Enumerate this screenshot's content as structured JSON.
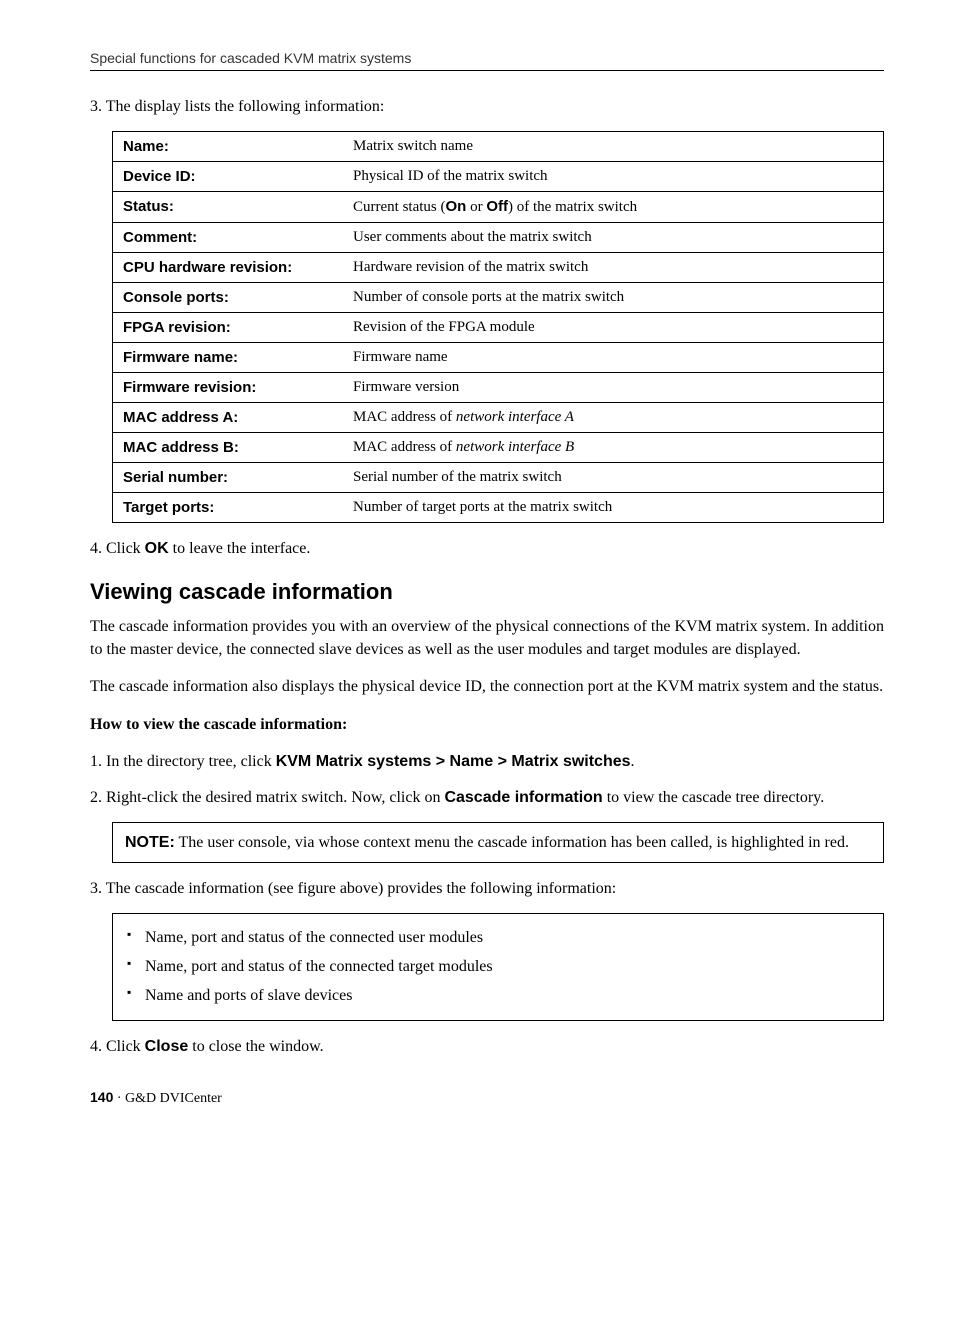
{
  "header": "Special functions for cascaded KVM matrix systems",
  "step3": "3. The display lists the following information:",
  "table": {
    "rows": [
      {
        "label": "Name:",
        "value_pre": "Matrix switch name",
        "value_post": ""
      },
      {
        "label": "Device ID:",
        "value_pre": "Physical ID of the matrix switch",
        "value_post": ""
      },
      {
        "label": "Status:",
        "value_pre": "Current status (",
        "bold1": "On",
        "mid": " or ",
        "bold2": "Off",
        "value_post": ") of the matrix switch"
      },
      {
        "label": "Comment:",
        "value_pre": "User comments about the matrix switch",
        "value_post": ""
      },
      {
        "label": "CPU hardware revision:",
        "value_pre": "Hardware revision of the matrix switch",
        "value_post": ""
      },
      {
        "label": "Console ports:",
        "value_pre": "Number of console ports at the matrix switch",
        "value_post": ""
      },
      {
        "label": "FPGA revision:",
        "value_pre": "Revision of the FPGA module",
        "value_post": ""
      },
      {
        "label": "Firmware name:",
        "value_pre": "Firmware name",
        "value_post": ""
      },
      {
        "label": "Firmware revision:",
        "value_pre": "Firmware version",
        "value_post": ""
      },
      {
        "label": "MAC address A:",
        "value_pre": "MAC address of ",
        "italic": "network interface A",
        "value_post": ""
      },
      {
        "label": "MAC address B:",
        "value_pre": "MAC address of ",
        "italic": "network interface B",
        "value_post": ""
      },
      {
        "label": "Serial number:",
        "value_pre": "Serial number of the matrix switch",
        "value_post": ""
      },
      {
        "label": "Target ports:",
        "value_pre": "Number of target ports at the matrix switch",
        "value_post": ""
      }
    ]
  },
  "step4_pre": "4. Click ",
  "step4_bold": "OK",
  "step4_post": " to leave the interface.",
  "section_heading": "Viewing cascade information",
  "para1": "The cascade information provides you with an overview of the physical connections of the KVM matrix system. In addition to the master device, the connected slave devices as well as the user modules and target modules are displayed.",
  "para2": "The cascade information also displays the physical device ID, the connection port at the KVM matrix system and the status.",
  "howto": "How to view the cascade information:",
  "list1_pre": "1. In the directory tree, click ",
  "list1_bold": "KVM Matrix systems > Name > Matrix switches",
  "list1_post": ".",
  "list2_pre": "2. Right-click the desired matrix switch. Now, click on ",
  "list2_bold": "Cascade information",
  "list2_post": " to view the cascade tree directory.",
  "note_label": "NOTE:",
  "note_text": " The user console, via whose context menu the cascade information has been called, is highlighted in red.",
  "list3": "3. The cascade information (see figure above) provides the following information:",
  "bullets": [
    "Name, port and status of the connected user modules",
    "Name, port and status of the connected target modules",
    "Name and ports of slave devices"
  ],
  "list4_pre": "4. Click ",
  "list4_bold": "Close",
  "list4_post": " to close the window.",
  "footer_page": "140",
  "footer_sep": " · ",
  "footer_text": "G&D DVICenter"
}
